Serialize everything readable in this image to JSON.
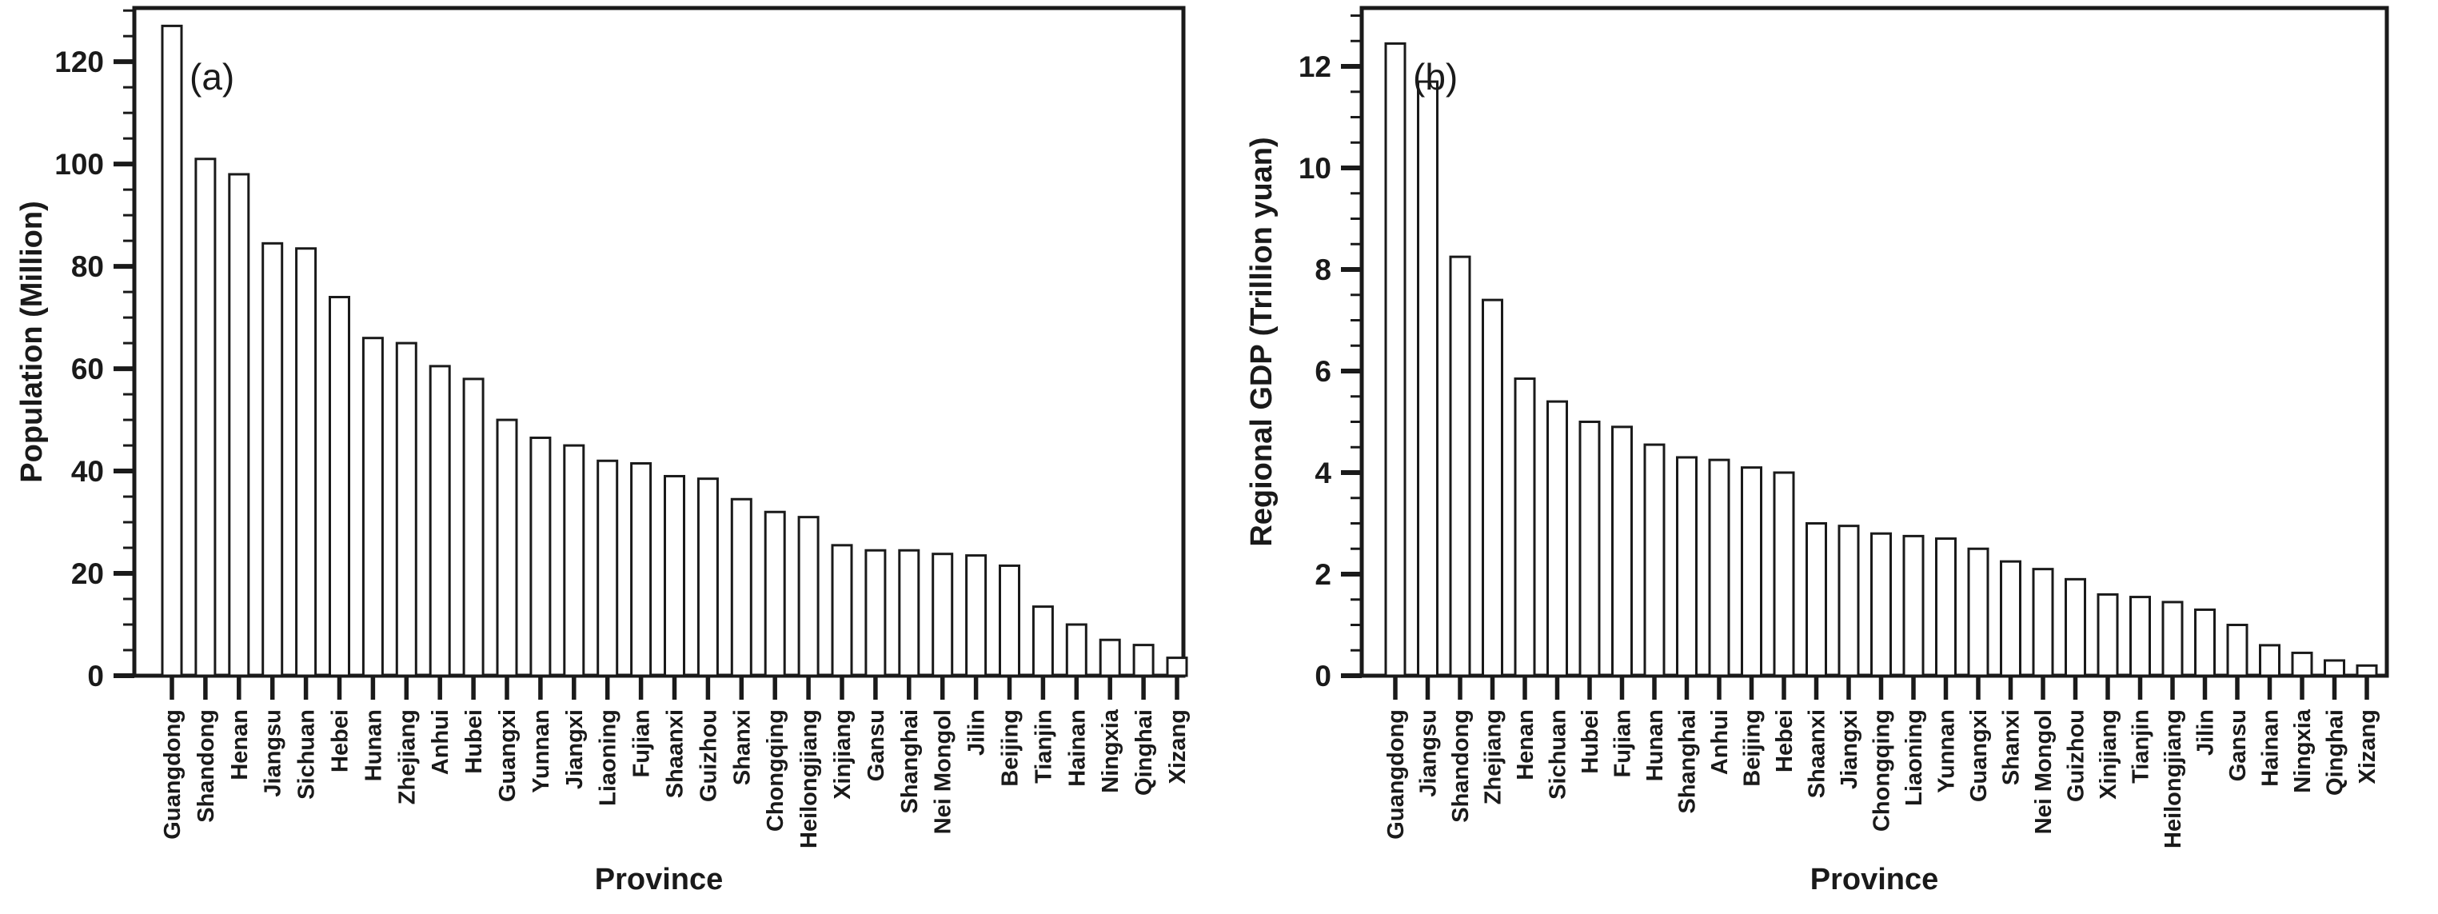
{
  "figure": {
    "background": "#ffffff",
    "ink_color": "#1a1a1a",
    "bar_fill": "#ffffff",
    "bar_stroke": "#1a1a1a"
  },
  "chart_data": [
    {
      "type": "bar",
      "panel_label": "(a)",
      "xlabel": "Province",
      "ylabel": "Population (Million)",
      "legend": "none",
      "grid": false,
      "ylim": [
        0,
        130.5
      ],
      "yticks_major": [
        0,
        20,
        40,
        60,
        80,
        100,
        120
      ],
      "ytick_minor_step": 5,
      "categories": [
        "Guangdong",
        "Shandong",
        "Henan",
        "Jiangsu",
        "Sichuan",
        "Hebei",
        "Hunan",
        "Zhejiang",
        "Anhui",
        "Hubei",
        "Guangxi",
        "Yunnan",
        "Jiangxi",
        "Liaoning",
        "Fujian",
        "Shaanxi",
        "Guizhou",
        "Shanxi",
        "Chongqing",
        "Heilongjiang",
        "Xinjiang",
        "Gansu",
        "Shanghai",
        "Nei Mongol",
        "Jilin",
        "Beijing",
        "Tianjin",
        "Hainan",
        "Ningxia",
        "Qinghai",
        "Xizang"
      ],
      "values": [
        127,
        101,
        98,
        84.5,
        83.5,
        74,
        66,
        65,
        60.5,
        58,
        50,
        46.5,
        45,
        42,
        41.5,
        39,
        38.5,
        34.5,
        32,
        31,
        25.5,
        24.5,
        24.5,
        23.8,
        23.5,
        21.5,
        13.5,
        10,
        7,
        6,
        3.5
      ]
    },
    {
      "type": "bar",
      "panel_label": "(b)",
      "xlabel": "Province",
      "ylabel": "Regional GDP (Trillion yuan)",
      "legend": "none",
      "grid": false,
      "ylim": [
        0,
        13.15
      ],
      "yticks_major": [
        0,
        2,
        4,
        6,
        8,
        10,
        12
      ],
      "ytick_minor_step": 0.5,
      "categories": [
        "Guangdong",
        "Jiangsu",
        "Shandong",
        "Zhejiang",
        "Henan",
        "Sichuan",
        "Hubei",
        "Fujian",
        "Hunan",
        "Shanghai",
        "Anhui",
        "Beijing",
        "Hebei",
        "Shaanxi",
        "Jiangxi",
        "Chongqing",
        "Liaoning",
        "Yunnan",
        "Guangxi",
        "Shanxi",
        "Nei Mongol",
        "Guizhou",
        "Xinjiang",
        "Tianjin",
        "Heilongjiang",
        "Jilin",
        "Gansu",
        "Hainan",
        "Ningxia",
        "Qinghai",
        "Xizang"
      ],
      "values": [
        12.45,
        11.7,
        8.25,
        7.4,
        5.85,
        5.4,
        5.0,
        4.9,
        4.55,
        4.3,
        4.25,
        4.1,
        4.0,
        3.0,
        2.95,
        2.8,
        2.75,
        2.7,
        2.5,
        2.25,
        2.1,
        1.9,
        1.6,
        1.55,
        1.45,
        1.3,
        1.0,
        0.6,
        0.45,
        0.3,
        0.2
      ]
    }
  ]
}
